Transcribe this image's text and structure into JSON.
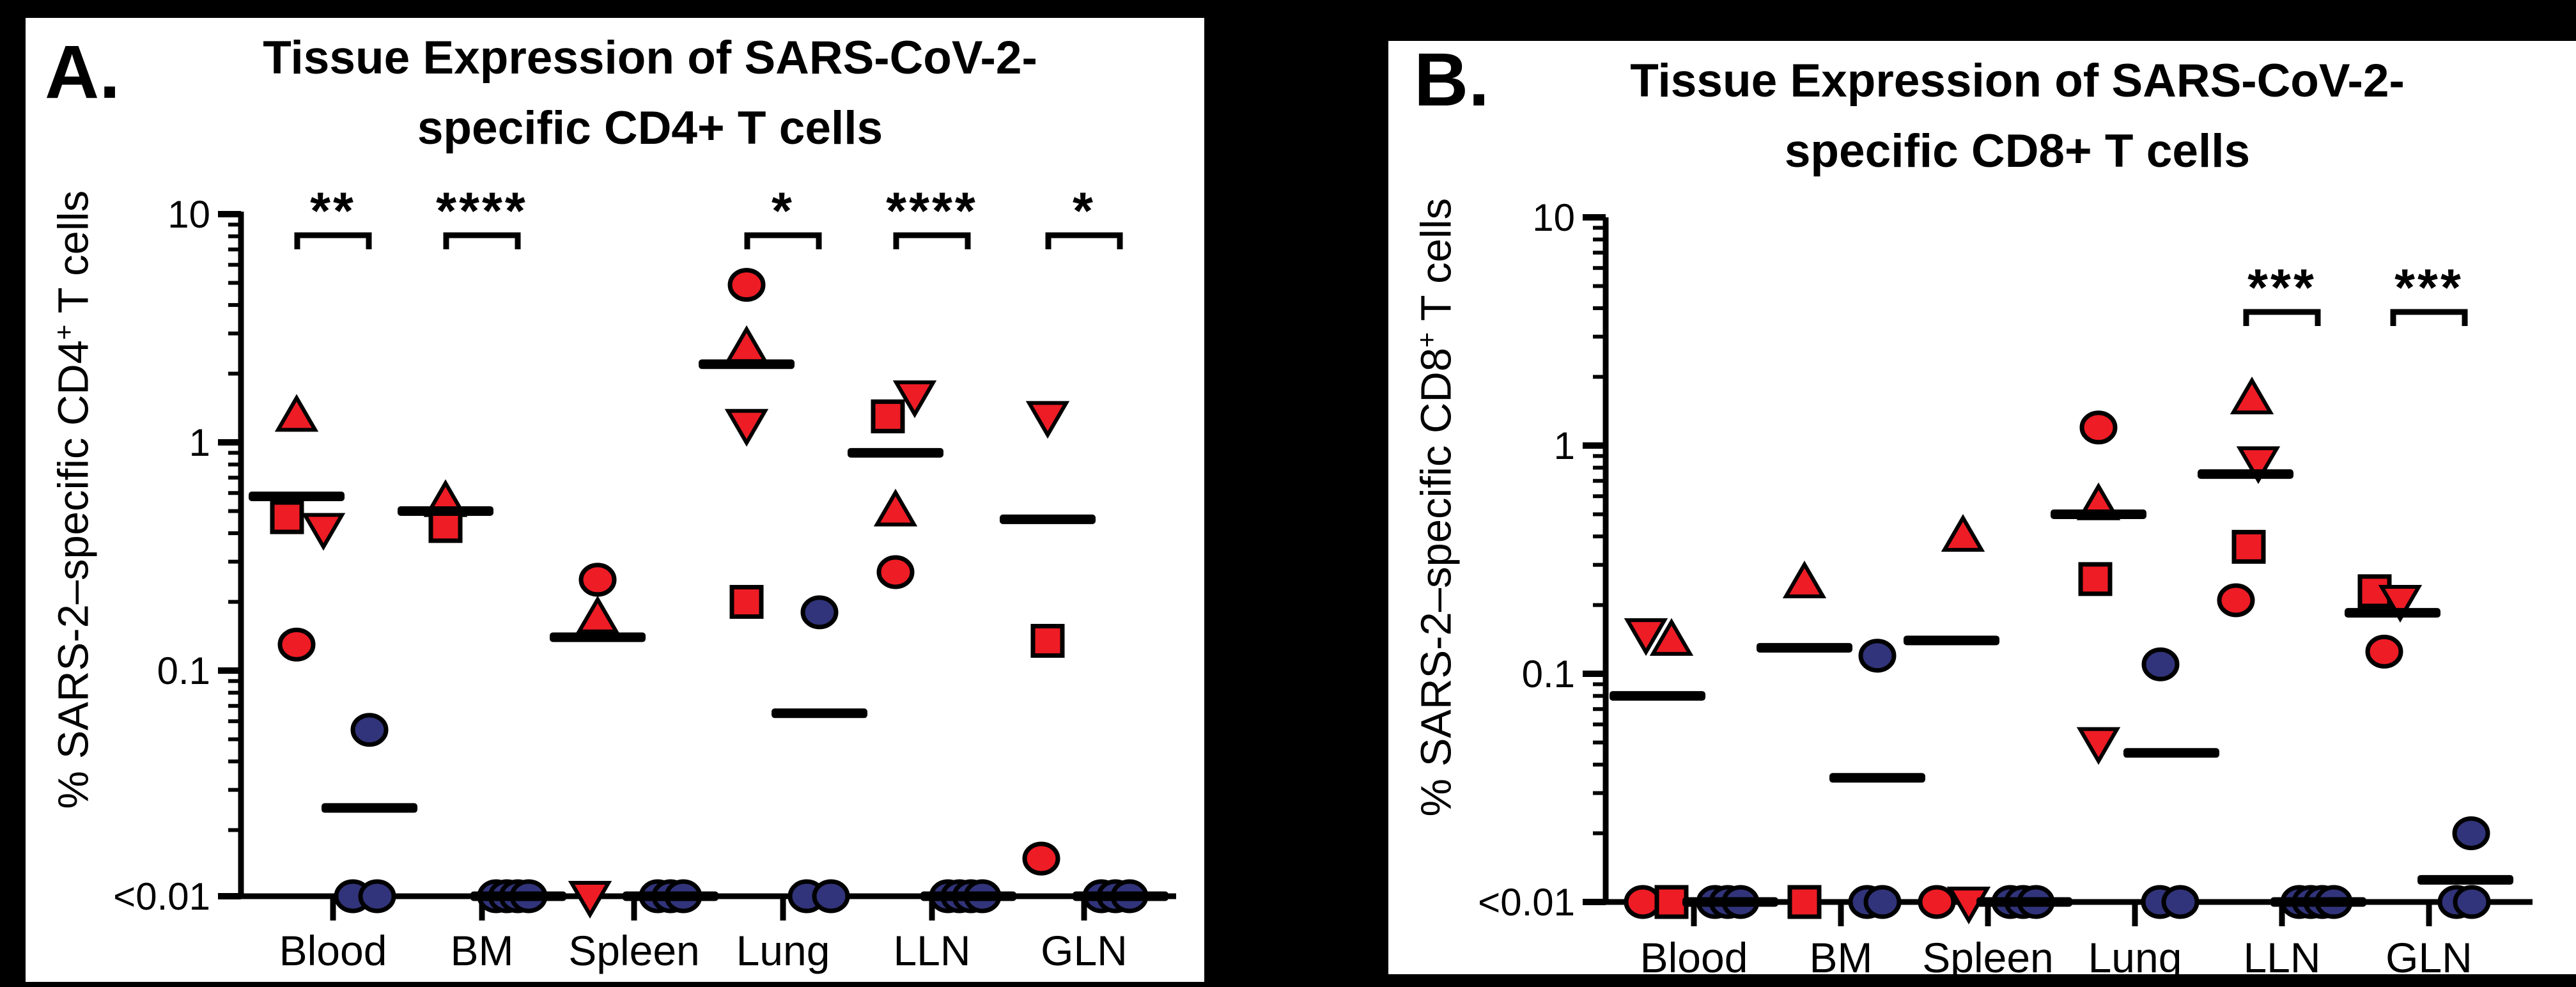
{
  "background_color": "#000000",
  "colors": {
    "red": "#ee1c25",
    "blue": "#31347a",
    "black": "#000000"
  },
  "chart_data": [
    {
      "type": "scatter",
      "panel_label": "A.",
      "title_line1": "Tissue Expression of SARS-CoV-2-",
      "title_line2": "specific CD4+ T cells",
      "ylabel": {
        "prefix": "% SARS-2–specific CD4",
        "sup": "+",
        "suffix": " T cells"
      },
      "y_scale": "log",
      "ylim": [
        "<0.01",
        10
      ],
      "y_ticks": [
        {
          "label": "10",
          "value": 10
        },
        {
          "label": "1",
          "value": 1
        },
        {
          "label": "0.1",
          "value": 0.1
        },
        {
          "label": "<0.01",
          "value": null
        }
      ],
      "categories": [
        "Blood",
        "BM",
        "Spleen",
        "Lung",
        "LLN",
        "GLN"
      ],
      "significance": [
        {
          "category": "Blood",
          "stars": "**"
        },
        {
          "category": "BM",
          "stars": "****"
        },
        {
          "category": "Lung",
          "stars": "*"
        },
        {
          "category": "LLN",
          "stars": "****"
        },
        {
          "category": "GLN",
          "stars": "*"
        }
      ],
      "groups": [
        {
          "category": "Blood",
          "red": {
            "median": 0.58,
            "points": [
              {
                "shape": "triangle-up",
                "value": 1.3,
                "dx": 0
              },
              {
                "shape": "square",
                "value": 0.47,
                "dx": -15
              },
              {
                "shape": "triangle-down",
                "value": 0.42,
                "dx": 42
              },
              {
                "shape": "circle",
                "value": 0.13,
                "dx": 0
              }
            ]
          },
          "blue": {
            "median": 0.025,
            "points": [
              {
                "shape": "circle",
                "value": 0.055,
                "dx": 0
              },
              {
                "shape": "circle",
                "value": "<0.01",
                "dx": -26
              },
              {
                "shape": "circle",
                "value": "<0.01",
                "dx": 12
              }
            ]
          }
        },
        {
          "category": "BM",
          "red": {
            "median": 0.5,
            "points": [
              {
                "shape": "triangle-up",
                "value": 0.55,
                "dx": 0
              },
              {
                "shape": "square",
                "value": 0.43,
                "dx": 0
              }
            ]
          },
          "blue": {
            "median": "<0.01",
            "points": [
              {
                "shape": "circle",
                "value": "<0.01",
                "dx": -35
              },
              {
                "shape": "circle",
                "value": "<0.01",
                "dx": -18
              },
              {
                "shape": "circle",
                "value": "<0.01",
                "dx": -1
              },
              {
                "shape": "circle",
                "value": "<0.01",
                "dx": 16
              }
            ]
          }
        },
        {
          "category": "Spleen",
          "red": {
            "median": 0.14,
            "points": [
              {
                "shape": "circle",
                "value": 0.25,
                "dx": 0
              },
              {
                "shape": "triangle-up",
                "value": 0.17,
                "dx": 0
              },
              {
                "shape": "triangle-down",
                "value": "<0.01",
                "dx": -12
              }
            ]
          },
          "blue": {
            "median": "<0.01",
            "points": [
              {
                "shape": "circle",
                "value": "<0.01",
                "dx": -20
              },
              {
                "shape": "circle",
                "value": "<0.01",
                "dx": 0
              },
              {
                "shape": "circle",
                "value": "<0.01",
                "dx": 20
              }
            ]
          }
        },
        {
          "category": "Lung",
          "red": {
            "median": 2.2,
            "points": [
              {
                "shape": "circle",
                "value": 4.9,
                "dx": 0
              },
              {
                "shape": "triangle-up",
                "value": 2.6,
                "dx": 0
              },
              {
                "shape": "triangle-down",
                "value": 1.2,
                "dx": 0
              },
              {
                "shape": "square",
                "value": 0.2,
                "dx": 0
              }
            ]
          },
          "blue": {
            "median": 0.065,
            "points": [
              {
                "shape": "circle",
                "value": 0.18,
                "dx": 0
              },
              {
                "shape": "circle",
                "value": "<0.01",
                "dx": -20
              },
              {
                "shape": "circle",
                "value": "<0.01",
                "dx": 18
              }
            ]
          }
        },
        {
          "category": "LLN",
          "red": {
            "median": 0.9,
            "points": [
              {
                "shape": "triangle-down",
                "value": 1.6,
                "dx": 30
              },
              {
                "shape": "square",
                "value": 1.3,
                "dx": -12
              },
              {
                "shape": "triangle-up",
                "value": 0.5,
                "dx": 0
              },
              {
                "shape": "circle",
                "value": 0.27,
                "dx": 0
              }
            ]
          },
          "blue": {
            "median": "<0.01",
            "points": [
              {
                "shape": "circle",
                "value": "<0.01",
                "dx": -32
              },
              {
                "shape": "circle",
                "value": "<0.01",
                "dx": -14
              },
              {
                "shape": "circle",
                "value": "<0.01",
                "dx": 4
              },
              {
                "shape": "circle",
                "value": "<0.01",
                "dx": 22
              }
            ]
          }
        },
        {
          "category": "GLN",
          "red": {
            "median": 0.46,
            "points": [
              {
                "shape": "triangle-down",
                "value": 1.3,
                "dx": 0
              },
              {
                "shape": "square",
                "value": 0.135,
                "dx": 0
              },
              {
                "shape": "circle",
                "value": 0.015,
                "dx": -10
              }
            ]
          },
          "blue": {
            "median": "<0.01",
            "points": [
              {
                "shape": "circle",
                "value": "<0.01",
                "dx": -30
              },
              {
                "shape": "circle",
                "value": "<0.01",
                "dx": -8
              },
              {
                "shape": "circle",
                "value": "<0.01",
                "dx": 14
              }
            ]
          }
        }
      ]
    },
    {
      "type": "scatter",
      "panel_label": "B.",
      "title_line1": "Tissue Expression of SARS-CoV-2-",
      "title_line2": "specific CD8+ T cells",
      "ylabel": {
        "prefix": "% SARS-2–specific CD8",
        "sup": "+",
        "suffix": " T cells"
      },
      "y_scale": "log",
      "ylim": [
        "<0.01",
        10
      ],
      "y_ticks": [
        {
          "label": "10",
          "value": 10
        },
        {
          "label": "1",
          "value": 1
        },
        {
          "label": "0.1",
          "value": 0.1
        },
        {
          "label": "<0.01",
          "value": null
        }
      ],
      "categories": [
        "Blood",
        "BM",
        "Spleen",
        "Lung",
        "LLN",
        "GLN"
      ],
      "significance": [
        {
          "category": "LLN",
          "stars": "***"
        },
        {
          "category": "GLN",
          "stars": "***"
        }
      ],
      "groups": [
        {
          "category": "Blood",
          "red": {
            "median": 0.08,
            "points": [
              {
                "shape": "triangle-down",
                "value": 0.15,
                "dx": -18
              },
              {
                "shape": "triangle-up",
                "value": 0.14,
                "dx": 22
              },
              {
                "shape": "circle",
                "value": "<0.01",
                "dx": -23
              },
              {
                "shape": "square",
                "value": "<0.01",
                "dx": 22
              }
            ]
          },
          "blue": {
            "median": "<0.01",
            "points": [
              {
                "shape": "circle",
                "value": "<0.01",
                "dx": -24
              },
              {
                "shape": "circle",
                "value": "<0.01",
                "dx": -4
              },
              {
                "shape": "circle",
                "value": "<0.01",
                "dx": 16
              }
            ]
          }
        },
        {
          "category": "BM",
          "red": {
            "median": 0.13,
            "points": [
              {
                "shape": "triangle-up",
                "value": 0.25,
                "dx": 0
              },
              {
                "shape": "square",
                "value": "<0.01",
                "dx": 0
              }
            ]
          },
          "blue": {
            "median": 0.035,
            "points": [
              {
                "shape": "circle",
                "value": 0.12,
                "dx": 0
              },
              {
                "shape": "circle",
                "value": "<0.01",
                "dx": -16
              },
              {
                "shape": "circle",
                "value": "<0.01",
                "dx": 8
              }
            ]
          }
        },
        {
          "category": "Spleen",
          "red": {
            "median": 0.14,
            "points": [
              {
                "shape": "triangle-up",
                "value": 0.4,
                "dx": 18
              },
              {
                "shape": "circle",
                "value": "<0.01",
                "dx": -23
              },
              {
                "shape": "triangle-down",
                "value": "<0.01",
                "dx": 27
              }
            ]
          },
          "blue": {
            "median": "<0.01",
            "points": [
              {
                "shape": "circle",
                "value": "<0.01",
                "dx": -22
              },
              {
                "shape": "circle",
                "value": "<0.01",
                "dx": -2
              },
              {
                "shape": "circle",
                "value": "<0.01",
                "dx": 18
              }
            ]
          }
        },
        {
          "category": "Lung",
          "red": {
            "median": 0.5,
            "points": [
              {
                "shape": "circle",
                "value": 1.2,
                "dx": 0
              },
              {
                "shape": "triangle-up",
                "value": 0.55,
                "dx": 0
              },
              {
                "shape": "square",
                "value": 0.26,
                "dx": -5
              },
              {
                "shape": "triangle-down",
                "value": 0.05,
                "dx": 0
              }
            ]
          },
          "blue": {
            "median": 0.045,
            "points": [
              {
                "shape": "circle",
                "value": 0.11,
                "dx": -17
              },
              {
                "shape": "circle",
                "value": "<0.01",
                "dx": -18
              },
              {
                "shape": "circle",
                "value": "<0.01",
                "dx": 14
              }
            ]
          }
        },
        {
          "category": "LLN",
          "red": {
            "median": 0.75,
            "points": [
              {
                "shape": "triangle-up",
                "value": 1.6,
                "dx": 10
              },
              {
                "shape": "triangle-down",
                "value": 0.85,
                "dx": 20
              },
              {
                "shape": "square",
                "value": 0.36,
                "dx": 5
              },
              {
                "shape": "circle",
                "value": 0.21,
                "dx": -15
              }
            ]
          },
          "blue": {
            "median": "<0.01",
            "points": [
              {
                "shape": "circle",
                "value": "<0.01",
                "dx": -30
              },
              {
                "shape": "circle",
                "value": "<0.01",
                "dx": -12
              },
              {
                "shape": "circle",
                "value": "<0.01",
                "dx": 6
              },
              {
                "shape": "circle",
                "value": "<0.01",
                "dx": 24
              }
            ]
          }
        },
        {
          "category": "GLN",
          "red": {
            "median": 0.185,
            "points": [
              {
                "shape": "square",
                "value": 0.23,
                "dx": -28
              },
              {
                "shape": "triangle-down",
                "value": 0.21,
                "dx": 12
              },
              {
                "shape": "circle",
                "value": 0.125,
                "dx": -13
              }
            ]
          },
          "blue": {
            "median": 0.0125,
            "points": [
              {
                "shape": "circle",
                "value": 0.02,
                "dx": 9
              },
              {
                "shape": "circle",
                "value": "<0.01",
                "dx": -14
              },
              {
                "shape": "circle",
                "value": "<0.01",
                "dx": 10
              }
            ]
          }
        }
      ]
    }
  ]
}
